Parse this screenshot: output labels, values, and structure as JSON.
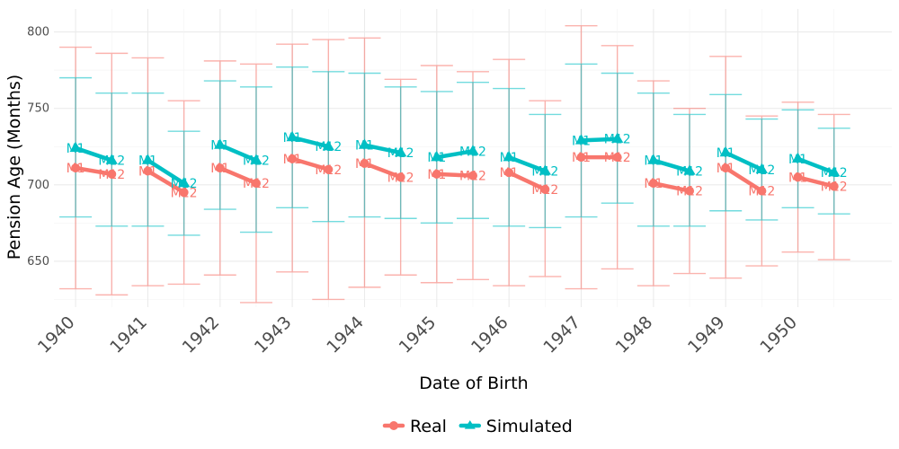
{
  "chart_data": {
    "type": "line",
    "xlabel": "Date of Birth",
    "ylabel": "Pension Age (Months)",
    "y_ticks": [
      "650",
      "700",
      "750",
      "800"
    ],
    "ylim": [
      620,
      815
    ],
    "x_ticks": [
      "1940",
      "1941",
      "1942",
      "1943",
      "1944",
      "1945",
      "1946",
      "1947",
      "1948",
      "1949",
      "1950"
    ],
    "xlim": [
      1939.7,
      1951.3
    ],
    "grid": true,
    "legend_position": "bottom",
    "colors": {
      "Real": "#F8766D",
      "Simulated": "#00BFC4"
    },
    "point_labels": [
      "M1",
      "M12"
    ],
    "series": [
      {
        "name": "Real",
        "marker": "circle",
        "points": [
          {
            "x": 1940,
            "y": 711,
            "lo": 632,
            "hi": 790
          },
          {
            "x": 1940.5,
            "y": 707,
            "lo": 628,
            "hi": 786
          },
          {
            "x": 1941,
            "y": 709,
            "lo": 634,
            "hi": 783
          },
          {
            "x": 1941.5,
            "y": 695,
            "lo": 635,
            "hi": 755
          },
          {
            "x": 1942,
            "y": 711,
            "lo": 641,
            "hi": 781
          },
          {
            "x": 1942.5,
            "y": 701,
            "lo": 623,
            "hi": 779
          },
          {
            "x": 1943,
            "y": 717,
            "lo": 643,
            "hi": 792
          },
          {
            "x": 1943.5,
            "y": 710,
            "lo": 625,
            "hi": 795
          },
          {
            "x": 1944,
            "y": 714,
            "lo": 633,
            "hi": 796
          },
          {
            "x": 1944.5,
            "y": 705,
            "lo": 641,
            "hi": 769
          },
          {
            "x": 1945,
            "y": 707,
            "lo": 636,
            "hi": 778
          },
          {
            "x": 1945.5,
            "y": 706,
            "lo": 638,
            "hi": 774
          },
          {
            "x": 1946,
            "y": 708,
            "lo": 634,
            "hi": 782
          },
          {
            "x": 1946.5,
            "y": 697,
            "lo": 640,
            "hi": 755
          },
          {
            "x": 1947,
            "y": 718,
            "lo": 632,
            "hi": 804
          },
          {
            "x": 1947.5,
            "y": 718,
            "lo": 645,
            "hi": 791
          },
          {
            "x": 1948,
            "y": 701,
            "lo": 634,
            "hi": 768
          },
          {
            "x": 1948.5,
            "y": 696,
            "lo": 642,
            "hi": 750
          },
          {
            "x": 1949,
            "y": 711,
            "lo": 639,
            "hi": 784
          },
          {
            "x": 1949.5,
            "y": 696,
            "lo": 647,
            "hi": 745
          },
          {
            "x": 1950,
            "y": 705,
            "lo": 656,
            "hi": 754
          },
          {
            "x": 1950.5,
            "y": 699,
            "lo": 651,
            "hi": 746
          }
        ]
      },
      {
        "name": "Simulated",
        "marker": "triangle",
        "points": [
          {
            "x": 1940,
            "y": 724,
            "lo": 679,
            "hi": 770
          },
          {
            "x": 1940.5,
            "y": 716,
            "lo": 673,
            "hi": 760
          },
          {
            "x": 1941,
            "y": 716,
            "lo": 673,
            "hi": 760
          },
          {
            "x": 1941.5,
            "y": 701,
            "lo": 667,
            "hi": 735
          },
          {
            "x": 1942,
            "y": 726,
            "lo": 684,
            "hi": 768
          },
          {
            "x": 1942.5,
            "y": 716,
            "lo": 669,
            "hi": 764
          },
          {
            "x": 1943,
            "y": 731,
            "lo": 685,
            "hi": 777
          },
          {
            "x": 1943.5,
            "y": 725,
            "lo": 676,
            "hi": 774
          },
          {
            "x": 1944,
            "y": 726,
            "lo": 679,
            "hi": 773
          },
          {
            "x": 1944.5,
            "y": 721,
            "lo": 678,
            "hi": 764
          },
          {
            "x": 1945,
            "y": 718,
            "lo": 675,
            "hi": 761
          },
          {
            "x": 1945.5,
            "y": 722,
            "lo": 678,
            "hi": 767
          },
          {
            "x": 1946,
            "y": 718,
            "lo": 673,
            "hi": 763
          },
          {
            "x": 1946.5,
            "y": 709,
            "lo": 672,
            "hi": 746
          },
          {
            "x": 1947,
            "y": 729,
            "lo": 679,
            "hi": 779
          },
          {
            "x": 1947.5,
            "y": 730,
            "lo": 688,
            "hi": 773
          },
          {
            "x": 1948,
            "y": 716,
            "lo": 673,
            "hi": 760
          },
          {
            "x": 1948.5,
            "y": 709,
            "lo": 673,
            "hi": 746
          },
          {
            "x": 1949,
            "y": 721,
            "lo": 683,
            "hi": 759
          },
          {
            "x": 1949.5,
            "y": 710,
            "lo": 677,
            "hi": 743
          },
          {
            "x": 1950,
            "y": 717,
            "lo": 685,
            "hi": 749
          },
          {
            "x": 1950.5,
            "y": 708,
            "lo": 681,
            "hi": 737
          }
        ]
      }
    ]
  }
}
